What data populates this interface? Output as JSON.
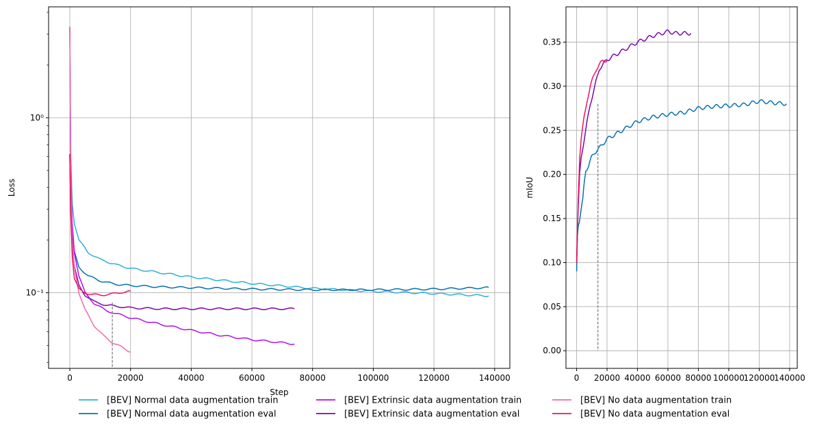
{
  "chart_data": [
    {
      "id": "loss",
      "type": "line",
      "xlabel": "Step",
      "ylabel": "Loss",
      "yscale": "log",
      "xlim": [
        -7000,
        145000
      ],
      "ylim": [
        0.037,
        4.3
      ],
      "grid": true,
      "xticks": [
        0,
        20000,
        40000,
        60000,
        80000,
        100000,
        120000,
        140000
      ],
      "xtick_labels": [
        "0",
        "20000",
        "40000",
        "60000",
        "80000",
        "100000",
        "120000",
        "140000"
      ],
      "yticks": [
        0.1,
        1
      ],
      "ytick_labels": [
        "10⁻¹",
        "10⁰"
      ],
      "vline": {
        "x": 14000,
        "y_from": 0.037,
        "y_to": 0.088
      },
      "series": [
        {
          "name": "[BEV] Normal data augmentation train",
          "color": "#2eb0d4",
          "x": [
            0,
            300,
            800,
            1500,
            3000,
            6000,
            10000,
            15000,
            20000,
            30000,
            40000,
            60000,
            80000,
            100000,
            120000,
            138000
          ],
          "y": [
            3.3,
            0.6,
            0.32,
            0.25,
            0.2,
            0.17,
            0.155,
            0.145,
            0.138,
            0.13,
            0.123,
            0.113,
            0.106,
            0.102,
            0.099,
            0.096
          ]
        },
        {
          "name": "[BEV] Normal data augmentation eval",
          "color": "#0570b0",
          "x": [
            0,
            300,
            800,
            1500,
            3000,
            6000,
            10000,
            15000,
            20000,
            30000,
            40000,
            60000,
            80000,
            100000,
            120000,
            138000
          ],
          "y": [
            0.62,
            0.3,
            0.22,
            0.17,
            0.14,
            0.125,
            0.117,
            0.112,
            0.11,
            0.108,
            0.107,
            0.105,
            0.104,
            0.104,
            0.105,
            0.107
          ]
        },
        {
          "name": "[BEV] Extrinsic data augmentation train",
          "color": "#b010e8",
          "x": [
            0,
            300,
            800,
            1500,
            3000,
            5000,
            8000,
            12000,
            20000,
            30000,
            40000,
            50000,
            60000,
            74000
          ],
          "y": [
            3.3,
            0.5,
            0.25,
            0.17,
            0.125,
            0.1,
            0.087,
            0.079,
            0.072,
            0.066,
            0.061,
            0.057,
            0.054,
            0.051
          ]
        },
        {
          "name": "[BEV] Extrinsic data augmentation eval",
          "color": "#7a06a8",
          "x": [
            0,
            300,
            800,
            1500,
            3000,
            5000,
            8000,
            12000,
            20000,
            30000,
            45000,
            60000,
            74000
          ],
          "y": [
            0.62,
            0.3,
            0.19,
            0.14,
            0.11,
            0.097,
            0.089,
            0.085,
            0.082,
            0.081,
            0.081,
            0.081,
            0.081
          ]
        },
        {
          "name": "[BEV] No data augmentation train",
          "color": "#f06aa7",
          "x": [
            0,
            300,
            800,
            1500,
            3000,
            5000,
            8000,
            11000,
            14000,
            17000,
            20000
          ],
          "y": [
            3.3,
            0.45,
            0.2,
            0.14,
            0.1,
            0.08,
            0.065,
            0.057,
            0.052,
            0.049,
            0.046
          ]
        },
        {
          "name": "[BEV] No data augmentation eval",
          "color": "#f0105e",
          "x": [
            0,
            300,
            800,
            1500,
            3000,
            5000,
            7000,
            10000,
            13000,
            16000,
            20000
          ],
          "y": [
            0.62,
            0.28,
            0.16,
            0.12,
            0.105,
            0.1,
            0.098,
            0.097,
            0.098,
            0.1,
            0.102
          ]
        }
      ]
    },
    {
      "id": "miou",
      "type": "line",
      "xlabel": "",
      "ylabel": "mIoU",
      "yscale": "linear",
      "xlim": [
        -7000,
        145000
      ],
      "ylim": [
        -0.02,
        0.39
      ],
      "grid": true,
      "xticks": [
        0,
        20000,
        40000,
        60000,
        80000,
        100000,
        120000,
        140000
      ],
      "xtick_labels": [
        "0",
        "20000",
        "40000",
        "60000",
        "80000",
        "100000",
        "120000",
        "140000"
      ],
      "yticks": [
        0.0,
        0.05,
        0.1,
        0.15,
        0.2,
        0.25,
        0.3,
        0.35
      ],
      "ytick_labels": [
        "0.00",
        "0.05",
        "0.10",
        "0.15",
        "0.20",
        "0.25",
        "0.30",
        "0.35"
      ],
      "vline": {
        "x": 14000,
        "y_from": 0.0,
        "y_to": 0.28
      },
      "series": [
        {
          "name": "[BEV] Normal data augmentation eval",
          "color": "#0570b0",
          "x": [
            0,
            500,
            1000,
            2000,
            3000,
            4000,
            5000,
            6000,
            8000,
            10000,
            12000,
            15000,
            20000,
            25000,
            30000,
            40000,
            50000,
            60000,
            70000,
            80000,
            90000,
            100000,
            110000,
            120000,
            130000,
            138000
          ],
          "y": [
            0.09,
            0.13,
            0.14,
            0.15,
            0.16,
            0.17,
            0.19,
            0.205,
            0.21,
            0.22,
            0.225,
            0.23,
            0.24,
            0.245,
            0.25,
            0.26,
            0.265,
            0.268,
            0.27,
            0.275,
            0.277,
            0.278,
            0.279,
            0.283,
            0.281,
            0.28
          ]
        },
        {
          "name": "[BEV] Extrinsic data augmentation eval",
          "color": "#7a06a8",
          "x": [
            0,
            1000,
            2000,
            3000,
            5000,
            7000,
            9000,
            12000,
            15000,
            20000,
            25000,
            30000,
            40000,
            50000,
            60000,
            65000,
            70000,
            75000
          ],
          "y": [
            0.1,
            0.16,
            0.2,
            0.22,
            0.24,
            0.26,
            0.28,
            0.3,
            0.32,
            0.33,
            0.335,
            0.34,
            0.35,
            0.357,
            0.362,
            0.36,
            0.36,
            0.36
          ]
        },
        {
          "name": "[BEV] No data augmentation eval",
          "color": "#f0105e",
          "x": [
            0,
            1000,
            2000,
            3000,
            5000,
            7000,
            9000,
            11000,
            13000,
            15000,
            17000,
            20000
          ],
          "y": [
            0.1,
            0.17,
            0.22,
            0.24,
            0.265,
            0.285,
            0.3,
            0.31,
            0.32,
            0.325,
            0.328,
            0.33
          ]
        }
      ]
    }
  ],
  "legend": {
    "placement": "bottom",
    "columns": [
      [
        {
          "label": "[BEV] Normal data augmentation train",
          "color": "#2eb0d4"
        },
        {
          "label": "[BEV] Normal data augmentation eval",
          "color": "#0570b0"
        }
      ],
      [
        {
          "label": "[BEV] Extrinsic data augmentation train",
          "color": "#b010e8"
        },
        {
          "label": "[BEV] Extrinsic data augmentation eval",
          "color": "#7a06a8"
        }
      ],
      [
        {
          "label": "[BEV] No data augmentation train",
          "color": "#f06aa7"
        },
        {
          "label": "[BEV] No data augmentation eval",
          "color": "#f0105e"
        }
      ]
    ]
  }
}
